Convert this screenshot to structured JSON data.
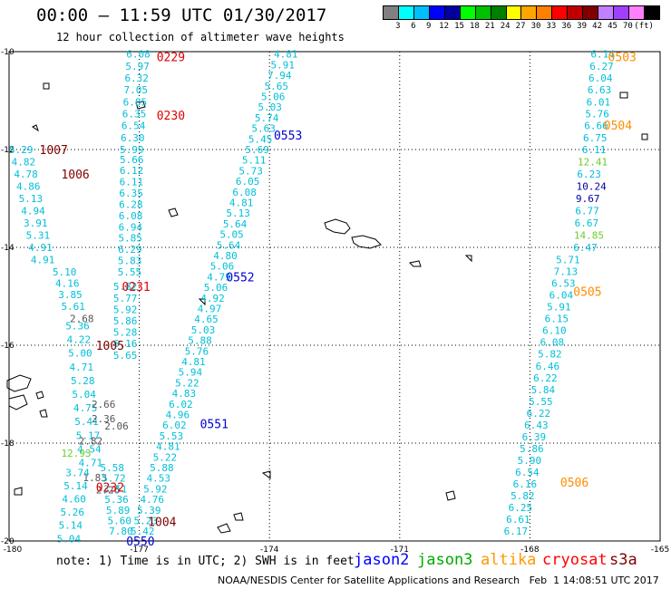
{
  "header": {
    "title": "00:00 – 11:59 UTC 01/30/2017",
    "subtitle": "12 hour collection of altimeter wave heights"
  },
  "legend": {
    "swatches": [
      "#808080",
      "#00ffff",
      "#00bfff",
      "#0000ff",
      "#0000a0",
      "#00ff00",
      "#00c000",
      "#008000",
      "#ffff00",
      "#ffa500",
      "#ff8000",
      "#ff0000",
      "#c00000",
      "#800000",
      "#c080ff",
      "#a040ff",
      "#ff80ff",
      "#000000"
    ],
    "labels": [
      "3",
      "6",
      "9",
      "12",
      "15",
      "18",
      "21",
      "24",
      "27",
      "30",
      "33",
      "36",
      "39",
      "42",
      "45",
      "70",
      "(ft)"
    ]
  },
  "axes": {
    "x_ticks": [
      "-180",
      "-177",
      "-174",
      "-171",
      "-168",
      "-165"
    ],
    "y_ticks": [
      "-10",
      "-12",
      "-14",
      "-16",
      "-18",
      "-20"
    ]
  },
  "colors": {
    "cyan": "#00bfd8",
    "gray": "#555555",
    "green": "#6ccc2c",
    "navy": "#0000a0",
    "red": "#e00000",
    "darkred": "#800000",
    "orange": "#ff8c00",
    "blue": "#0000d0"
  },
  "time_labels": [
    {
      "text": "0229",
      "color": "red",
      "lon": -176.6,
      "lat": -10.1
    },
    {
      "text": "0230",
      "color": "red",
      "lon": -176.6,
      "lat": -11.3
    },
    {
      "text": "1007",
      "color": "darkred",
      "lon": -179.3,
      "lat": -12.0
    },
    {
      "text": "1006",
      "color": "darkred",
      "lon": -178.8,
      "lat": -12.5
    },
    {
      "text": "0553",
      "color": "blue",
      "lon": -173.9,
      "lat": -11.7
    },
    {
      "text": "0231",
      "color": "red",
      "lon": -177.4,
      "lat": -14.8
    },
    {
      "text": "0552",
      "color": "blue",
      "lon": -175.0,
      "lat": -14.6
    },
    {
      "text": "1005",
      "color": "darkred",
      "lon": -178.0,
      "lat": -16.0
    },
    {
      "text": "0551",
      "color": "blue",
      "lon": -175.6,
      "lat": -17.6
    },
    {
      "text": "0232",
      "color": "red",
      "lon": -178.0,
      "lat": -18.9
    },
    {
      "text": "1004",
      "color": "darkred",
      "lon": -176.8,
      "lat": -19.6
    },
    {
      "text": "0550",
      "color": "blue",
      "lon": -177.3,
      "lat": -20.0
    },
    {
      "text": "0503",
      "color": "orange",
      "lon": -166.2,
      "lat": -10.1
    },
    {
      "text": "0504",
      "color": "orange",
      "lon": -166.3,
      "lat": -11.5
    },
    {
      "text": "0505",
      "color": "orange",
      "lon": -167.0,
      "lat": -14.9
    },
    {
      "text": "0506",
      "color": "orange",
      "lon": -167.3,
      "lat": -18.8
    }
  ],
  "tracks": [
    {
      "lon0": -177.3,
      "lat0": -10.05,
      "lon1": -177.45,
      "lat1": -12.0,
      "color": "cyan",
      "values": [
        "6.08",
        "5.97",
        "6.32",
        "7.05",
        "6.85",
        "6.35",
        "6.54",
        "6.30",
        "5.99"
      ]
    },
    {
      "lon0": -180.0,
      "lat0": -12.0,
      "lon1": -179.5,
      "lat1": -14.25,
      "color": "cyan",
      "values": [
        "5.29",
        "4.82",
        "4.78",
        "4.86",
        "5.13",
        "4.94",
        "3.91",
        "5.31",
        "4.91",
        "4.91"
      ]
    },
    {
      "lon0": -177.45,
      "lat0": -12.2,
      "lon1": -177.5,
      "lat1": -14.5,
      "color": "cyan",
      "values": [
        "5.66",
        "6.12",
        "6.11",
        "6.35",
        "6.28",
        "6.08",
        "6.94",
        "5.85",
        "6.29",
        "5.83",
        "5.55"
      ]
    },
    {
      "lon0": -179.0,
      "lat0": -14.5,
      "lon1": -178.8,
      "lat1": -15.2,
      "color": "cyan",
      "values": [
        "5.10",
        "4.16",
        "3.85",
        "5.61"
      ]
    },
    {
      "lon0": -177.6,
      "lat0": -14.8,
      "lon1": -177.6,
      "lat1": -16.2,
      "color": "cyan",
      "values": [
        "5.82",
        "5.77",
        "5.92",
        "5.86",
        "5.28",
        "6.16",
        "5.65"
      ]
    },
    {
      "lon0": -178.7,
      "lat0": -15.6,
      "lon1": -178.4,
      "lat1": -18.4,
      "color": "cyan",
      "values": [
        "5.36",
        "4.22",
        "5.00",
        "4.71",
        "5.28",
        "5.04",
        "4.75",
        "5.41",
        "5.17",
        "4.54",
        "4.71"
      ]
    },
    {
      "lon0": -178.6,
      "lat0": -15.45,
      "lon1": -178.6,
      "lat1": -15.45,
      "color": "gray",
      "values": [
        "2.68"
      ]
    },
    {
      "lon0": -178.1,
      "lat0": -17.2,
      "lon1": -178.1,
      "lat1": -17.5,
      "color": "gray",
      "values": [
        "2.66",
        "2.36"
      ]
    },
    {
      "lon0": -177.8,
      "lat0": -17.65,
      "lon1": -177.8,
      "lat1": -17.65,
      "color": "gray",
      "values": [
        "2.06"
      ]
    },
    {
      "lon0": -178.4,
      "lat0": -17.95,
      "lon1": -178.4,
      "lat1": -17.95,
      "color": "gray",
      "values": [
        "2.82"
      ]
    },
    {
      "lon0": -178.3,
      "lat0": -18.7,
      "lon1": -178.3,
      "lat1": -18.7,
      "color": "gray",
      "values": [
        "1.83"
      ]
    },
    {
      "lon0": -178.0,
      "lat0": -18.95,
      "lon1": -178.0,
      "lat1": -18.95,
      "color": "gray",
      "values": [
        "2.26"
      ]
    },
    {
      "lon0": -178.8,
      "lat0": -18.2,
      "lon1": -178.8,
      "lat1": -18.2,
      "color": "green",
      "values": [
        "12.93"
      ]
    },
    {
      "lon0": -178.7,
      "lat0": -18.6,
      "lon1": -178.9,
      "lat1": -19.95,
      "color": "cyan",
      "values": [
        "3.74",
        "5.14",
        "4.60",
        "5.26",
        "5.14",
        "5.04"
      ]
    },
    {
      "lon0": -177.9,
      "lat0": -18.5,
      "lon1": -177.7,
      "lat1": -19.8,
      "color": "cyan",
      "values": [
        "5.58",
        "5.72",
        "3.51",
        "5.36",
        "5.89",
        "5.60",
        "7.80"
      ]
    },
    {
      "lon0": -173.9,
      "lat0": -10.05,
      "lon1": -177.2,
      "lat1": -19.8,
      "color": "cyan",
      "values": [
        "4.81",
        "5.91",
        "7.94",
        "5.65",
        "5.06",
        "5.03",
        "5.74",
        "5.63",
        "5.45",
        "5.69",
        "5.11",
        "5.73",
        "6.05",
        "6.08",
        "4.81",
        "5.13",
        "5.64",
        "5.05",
        "5.64",
        "4.80",
        "5.06",
        "4.79",
        "5.06",
        "4.92",
        "4.97",
        "4.65",
        "5.03",
        "5.88",
        "5.76",
        "4.81",
        "5.94",
        "5.22",
        "4.83",
        "6.02",
        "4.96",
        "6.02",
        "5.53",
        "4.81",
        "5.22",
        "5.88",
        "4.53",
        "5.92",
        "4.76",
        "5.39",
        "5.23",
        "5.42"
      ]
    },
    {
      "lon0": -166.6,
      "lat0": -10.05,
      "lon1": -166.8,
      "lat1": -12.0,
      "color": "cyan",
      "values": [
        "6.14",
        "6.27",
        "6.04",
        "6.63",
        "6.01",
        "5.76",
        "6.66",
        "6.75",
        "6.11"
      ]
    },
    {
      "lon0": -166.9,
      "lat0": -12.25,
      "lon1": -167.0,
      "lat1": -14.0,
      "color": "cyan",
      "values": [
        "12.41",
        "6.23",
        "10.24",
        "9.67",
        "6.77",
        "6.67",
        "14.85",
        "6.47"
      ],
      "colors": [
        "green",
        "cyan",
        "navy",
        "navy",
        "cyan",
        "cyan",
        "green",
        "cyan"
      ]
    },
    {
      "lon0": -167.4,
      "lat0": -14.25,
      "lon1": -168.6,
      "lat1": -19.8,
      "color": "cyan",
      "values": [
        "5.71",
        "7.13",
        "6.53",
        "6.04",
        "5.91",
        "6.15",
        "6.10",
        "6.08",
        "5.82",
        "6.46",
        "6.22",
        "5.84",
        "5.55",
        "6.22",
        "6.43",
        "6.39",
        "5.86",
        "5.90",
        "6.54",
        "6.16",
        "5.82",
        "6.25",
        "6.61",
        "6.17"
      ]
    }
  ],
  "note": "note: 1) Time is in UTC; 2) SWH is in feet",
  "missions": [
    {
      "text": "jason2",
      "color": "#0000ff"
    },
    {
      "text": "jason3",
      "color": "#00aa00"
    },
    {
      "text": "altika",
      "color": "#ff9900"
    },
    {
      "text": "cryosat",
      "color": "#ff0000"
    },
    {
      "text": "s3a",
      "color": "#800000"
    }
  ],
  "credit": "NOAA/NESDIS Center for Satellite Applications and Research   Feb  1 14:08:51 UTC 2017"
}
